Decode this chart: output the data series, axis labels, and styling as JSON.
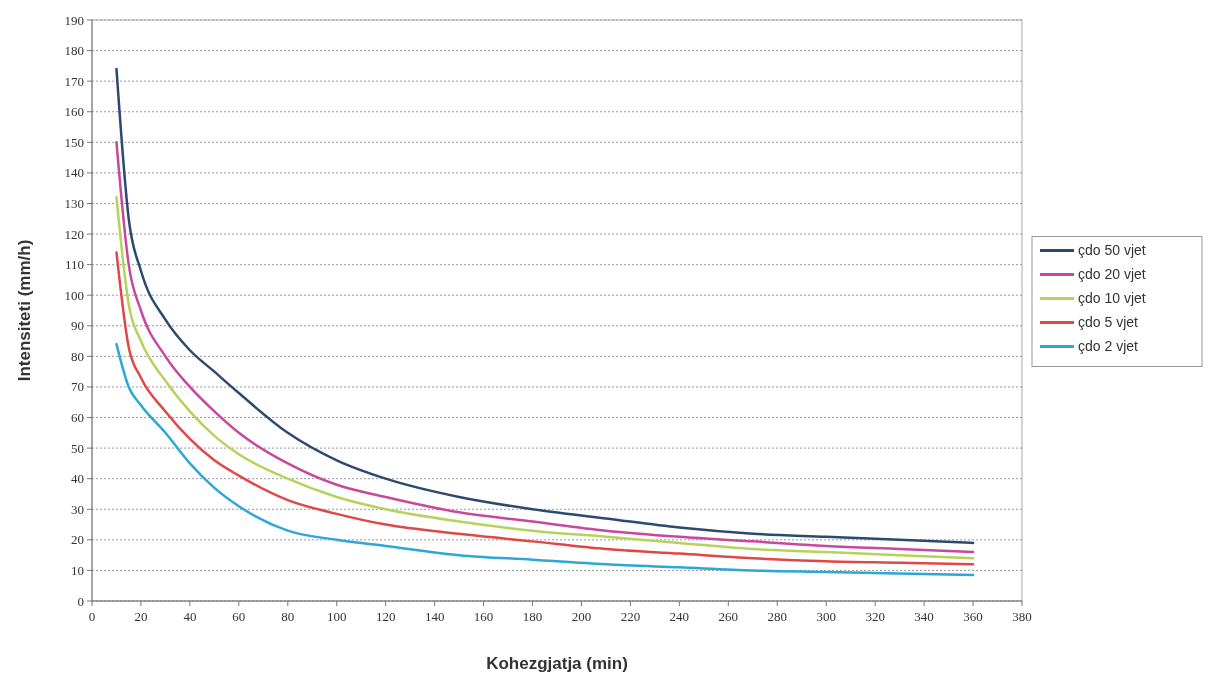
{
  "chart_data": {
    "type": "line",
    "xlabel": "Kohezgjatja (min)",
    "ylabel": "Intensiteti  (mm/h)",
    "x": [
      10,
      15,
      20,
      30,
      40,
      50,
      60,
      80,
      100,
      120,
      150,
      180,
      210,
      240,
      270,
      300,
      330,
      360
    ],
    "series": [
      {
        "name": "çdo 50 vjet",
        "color": "#2c4a6e",
        "values": [
          174,
          125,
          108,
          92,
          82,
          75,
          68,
          55,
          46,
          40,
          34,
          30,
          27,
          24,
          22,
          21,
          20,
          19
        ]
      },
      {
        "name": "çdo 20 vjet",
        "color": "#c8489c",
        "values": [
          150,
          110,
          95,
          80,
          70,
          62,
          55,
          45,
          38,
          34,
          29,
          26,
          23,
          21,
          19.5,
          18,
          17,
          16
        ]
      },
      {
        "name": "çdo 10 vjet",
        "color": "#b5d35a",
        "values": [
          132,
          97,
          85,
          72,
          62,
          54,
          48,
          40,
          34,
          30,
          26,
          23,
          21,
          19,
          17,
          16,
          15,
          14
        ]
      },
      {
        "name": "çdo 5 vjet",
        "color": "#e04848",
        "values": [
          114,
          83,
          73,
          62,
          53,
          46,
          41,
          33,
          28.5,
          25,
          22,
          19.5,
          17,
          15.5,
          14,
          13,
          12.5,
          12
        ]
      },
      {
        "name": "çdo 2 vjet",
        "color": "#2ba7d8",
        "values": [
          84,
          70,
          64,
          55,
          45,
          37,
          31,
          23,
          20,
          18,
          15,
          13.5,
          12,
          11,
          10,
          9.5,
          9,
          8.5
        ]
      }
    ],
    "xlim": [
      0,
      380
    ],
    "xticks": [
      0,
      20,
      40,
      60,
      80,
      100,
      120,
      140,
      160,
      180,
      200,
      220,
      240,
      260,
      280,
      300,
      320,
      340,
      360,
      380
    ],
    "ylim": [
      0,
      190
    ],
    "yticks": [
      0,
      10,
      20,
      30,
      40,
      50,
      60,
      70,
      80,
      90,
      100,
      110,
      120,
      130,
      140,
      150,
      160,
      170,
      180,
      190
    ],
    "grid": "y",
    "legend": "right",
    "marker": "none",
    "line_style": "solid"
  }
}
